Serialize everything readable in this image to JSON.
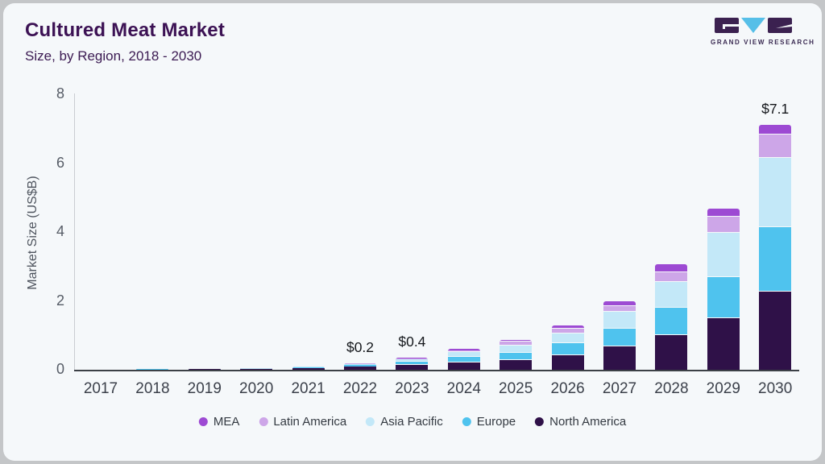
{
  "header": {
    "title": "Cultured Meat Market",
    "subtitle": "Size, by Region, 2018 - 2030"
  },
  "logo": {
    "text": "GRAND VIEW RESEARCH",
    "dark_color": "#3b2150",
    "accent_color": "#56bfe8"
  },
  "chart_data": {
    "type": "bar",
    "stacked": true,
    "title": "Cultured Meat Market",
    "subtitle": "Size, by Region, 2018 - 2030",
    "ylabel": "Market Size (US$B)",
    "xlabel": "",
    "ylim": [
      0,
      8
    ],
    "yticks": [
      0,
      2,
      4,
      6,
      8
    ],
    "grid": false,
    "legend_position": "bottom",
    "background": "#f5f8fa",
    "categories": [
      "2017",
      "2018",
      "2019",
      "2020",
      "2021",
      "2022",
      "2023",
      "2024",
      "2025",
      "2026",
      "2027",
      "2028",
      "2029",
      "2030"
    ],
    "series": [
      {
        "name": "North America",
        "color": "#2f1148",
        "values": [
          0.004,
          0.008,
          0.02,
          0.025,
          0.05,
          0.1,
          0.14,
          0.2,
          0.27,
          0.42,
          0.67,
          1.0,
          1.5,
          2.28
        ]
      },
      {
        "name": "Europe",
        "color": "#4fc3ee",
        "values": [
          0.002,
          0.004,
          0.006,
          0.008,
          0.02,
          0.035,
          0.09,
          0.17,
          0.21,
          0.36,
          0.53,
          0.8,
          1.2,
          1.87
        ]
      },
      {
        "name": "Asia Pacific",
        "color": "#c3e8f8",
        "values": [
          0.001,
          0.003,
          0.005,
          0.006,
          0.013,
          0.03,
          0.07,
          0.14,
          0.22,
          0.27,
          0.48,
          0.76,
          1.28,
          2.0
        ]
      },
      {
        "name": "Latin America",
        "color": "#cda6e8",
        "values": [
          0.001,
          0.001,
          0.002,
          0.003,
          0.005,
          0.012,
          0.035,
          0.06,
          0.12,
          0.14,
          0.16,
          0.28,
          0.46,
          0.7
        ]
      },
      {
        "name": "MEA",
        "color": "#9d4ad3",
        "values": [
          0.0,
          0.001,
          0.001,
          0.002,
          0.003,
          0.006,
          0.018,
          0.03,
          0.05,
          0.09,
          0.16,
          0.22,
          0.24,
          0.28
        ]
      }
    ],
    "annotations": [
      {
        "category": "2022",
        "label": "$0.2"
      },
      {
        "category": "2023",
        "label": "$0.4"
      },
      {
        "category": "2030",
        "label": "$7.1"
      }
    ]
  },
  "legend": {
    "items": [
      {
        "label": "MEA",
        "color": "#9d4ad3"
      },
      {
        "label": "Latin America",
        "color": "#cda6e8"
      },
      {
        "label": "Asia Pacific",
        "color": "#c3e8f8"
      },
      {
        "label": "Europe",
        "color": "#4fc3ee"
      },
      {
        "label": "North America",
        "color": "#2f1148"
      }
    ]
  }
}
